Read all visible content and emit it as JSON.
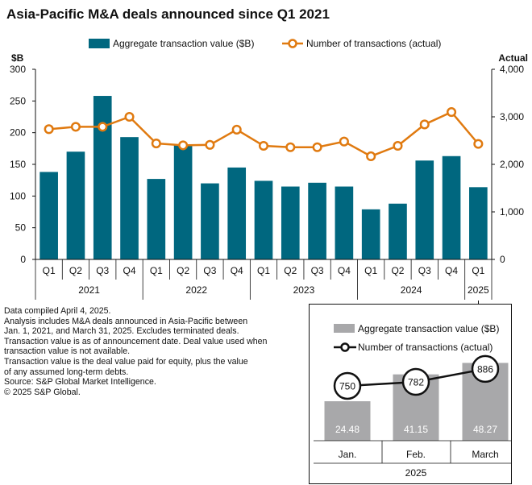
{
  "title": "Asia-Pacific M&A deals announced since Q1 2021",
  "legend": {
    "bar_label": "Aggregate transaction value ($B)",
    "line_label": "Number of transactions (actual)"
  },
  "notes": [
    "Data compiled April 4, 2025.",
    "Analysis includes M&A deals announced in Asia-Pacific between",
    "Jan. 1, 2021, and March 31, 2025. Excludes terminated deals.",
    "Transaction value is as of announcement date. Deal value used when",
    "transaction value is not available.",
    "Transaction value is the deal value paid for equity, plus the value",
    "of any assumed long-term debts.",
    "Source: S&P Global Market Intelligence.",
    "© 2025 S&P Global."
  ],
  "colors": {
    "bar": "#00677f",
    "line": "#e07a10",
    "inset_bar": "#a8a8aa",
    "axis": "#111111",
    "grid": "#d0d0d0"
  },
  "chart_data": [
    {
      "type": "bar+line",
      "categories": [
        "Q1",
        "Q2",
        "Q3",
        "Q4",
        "Q1",
        "Q2",
        "Q3",
        "Q4",
        "Q1",
        "Q2",
        "Q3",
        "Q4",
        "Q1",
        "Q2",
        "Q3",
        "Q4",
        "Q1"
      ],
      "groups": [
        {
          "label": "2021",
          "count": 4
        },
        {
          "label": "2022",
          "count": 4
        },
        {
          "label": "2023",
          "count": 4
        },
        {
          "label": "2024",
          "count": 4
        },
        {
          "label": "2025",
          "count": 1
        }
      ],
      "series": [
        {
          "name": "Aggregate transaction value ($B)",
          "type": "bar",
          "axis": "left",
          "values": [
            138,
            170,
            258,
            193,
            127,
            181,
            120,
            145,
            124,
            115,
            121,
            115,
            79,
            88,
            156,
            163,
            114
          ]
        },
        {
          "name": "Number of transactions (actual)",
          "type": "line",
          "axis": "right",
          "values": [
            2740,
            2790,
            2790,
            3000,
            2440,
            2400,
            2410,
            2730,
            2390,
            2360,
            2360,
            2480,
            2170,
            2390,
            2840,
            3100,
            2430
          ]
        }
      ],
      "left_axis": {
        "label": "$B",
        "ylim": [
          0,
          300
        ],
        "ticks": [
          0,
          50,
          100,
          150,
          200,
          250,
          300
        ]
      },
      "right_axis": {
        "label": "Actual",
        "ylim": [
          0,
          4000
        ],
        "ticks": [
          "0",
          "1,000",
          "2,000",
          "3,000",
          "4,000"
        ],
        "tick_values": [
          0,
          1000,
          2000,
          3000,
          4000
        ]
      }
    },
    {
      "type": "bar+line",
      "categories": [
        "Jan.",
        "Feb.",
        "March"
      ],
      "group_label": "2025",
      "series": [
        {
          "name": "Aggregate transaction value ($B)",
          "type": "bar",
          "values": [
            24.48,
            41.15,
            48.27
          ],
          "labels": [
            "24.48",
            "41.15",
            "48.27"
          ]
        },
        {
          "name": "Number of transactions (actual)",
          "type": "line",
          "values": [
            750,
            782,
            886
          ],
          "labels": [
            "750",
            "782",
            "886"
          ]
        }
      ]
    }
  ]
}
